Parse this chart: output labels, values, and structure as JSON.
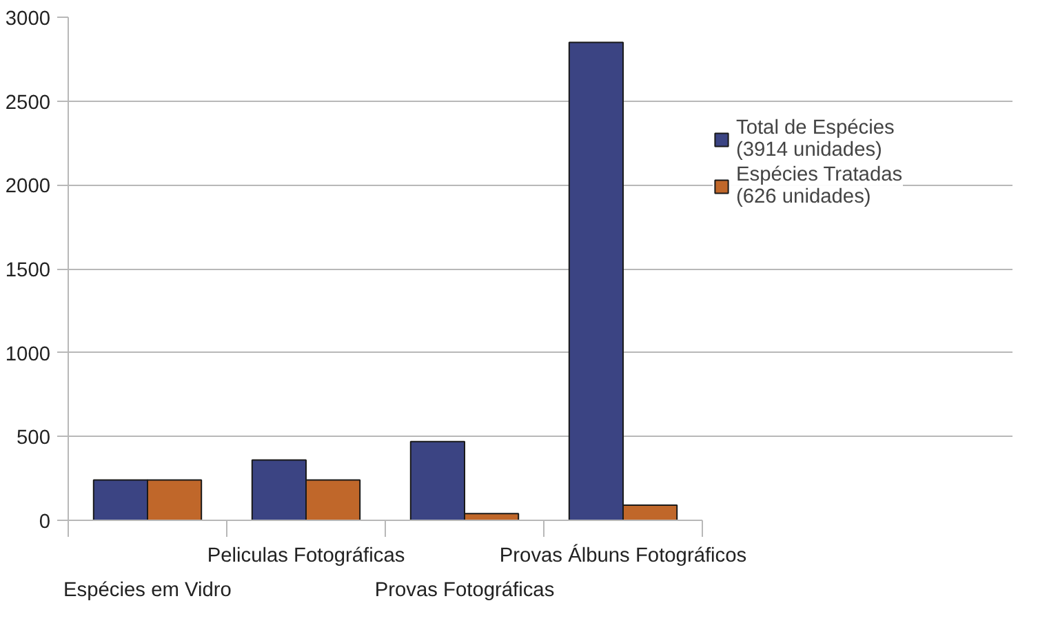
{
  "chart_data": {
    "type": "bar",
    "categories": [
      "Espécies em Vidro",
      "Peliculas Fotográficas",
      "Provas Fotográficas",
      "Provas Álbuns Fotográficos"
    ],
    "series": [
      {
        "name": "Total de Espécies\n(3914 unidades)",
        "color": "#3b4483",
        "values": [
          240,
          360,
          470,
          2850
        ]
      },
      {
        "name": "Espécies Tratadas\n(626 unidades)",
        "color": "#c0672a",
        "values": [
          240,
          240,
          40,
          90
        ]
      }
    ],
    "ylim": [
      0,
      3000
    ],
    "yticks": [
      0,
      500,
      1000,
      1500,
      2000,
      2500,
      3000
    ],
    "grid": "y",
    "legend": "right"
  }
}
